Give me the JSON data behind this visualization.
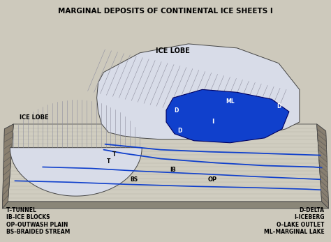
{
  "title": "MARGINAL DEPOSITS OF CONTINENTAL ICE SHEETS I",
  "bg_color": "#cdc9bc",
  "legend_left": [
    "T–TUNNEL",
    "IB–ICE BLOCKS",
    "OP–OUTWASH PLAIN",
    "BS–BRAIDED STREAM"
  ],
  "legend_right": [
    "D–DELTA",
    "I–ICEBERG",
    "O–LAKE OUTLET",
    "ML–MARGINAL LAKE"
  ],
  "ice_lobe_label_top": "ICE LOBE",
  "ice_lobe_label_left": "ICE LOBE",
  "lake_color": "#1040cc",
  "stream_color": "#1040cc",
  "terrain_light": "#d0cdc0",
  "terrain_mid": "#b8b4a4",
  "terrain_dark": "#8a8678",
  "ice_light": "#d8dce8",
  "ice_mid": "#c0c4d0",
  "outline": "#444444"
}
